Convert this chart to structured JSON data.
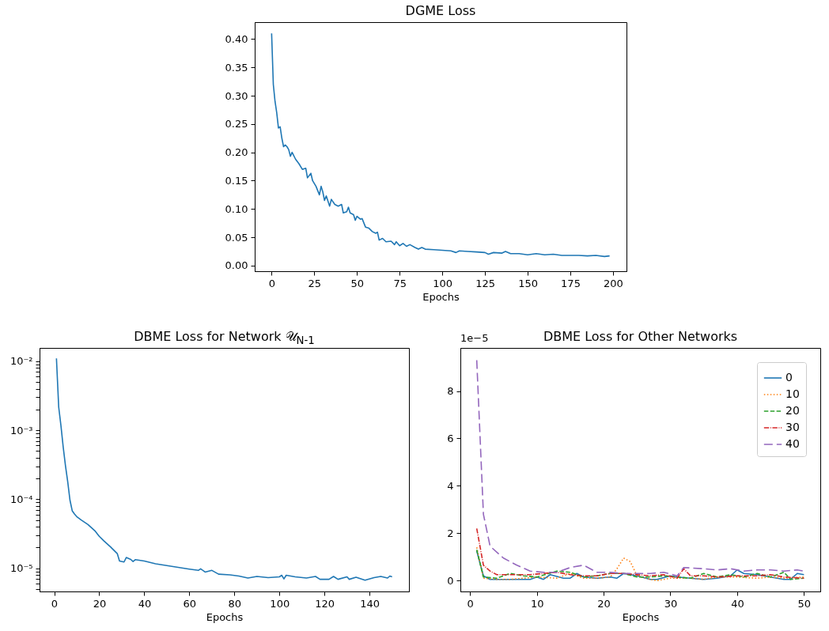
{
  "chart_data": [
    {
      "type": "line",
      "title": "DGME Loss",
      "xlabel": "Epochs",
      "xlim": [
        -9.9,
        207.9
      ],
      "ylim": [
        -0.01,
        0.43
      ],
      "xticks": [
        0,
        25,
        50,
        75,
        100,
        125,
        150,
        175,
        200
      ],
      "yticks": [
        {
          "value": 0,
          "label": "0.00"
        },
        {
          "value": 0.05,
          "label": "0.05"
        },
        {
          "value": 0.1,
          "label": "0.10"
        },
        {
          "value": 0.15,
          "label": "0.15"
        },
        {
          "value": 0.2,
          "label": "0.20"
        },
        {
          "value": 0.25,
          "label": "0.25"
        },
        {
          "value": 0.3,
          "label": "0.30"
        },
        {
          "value": 0.35,
          "label": "0.35"
        },
        {
          "value": 0.4,
          "label": "0.40"
        }
      ],
      "grid": false,
      "series": [
        {
          "color": "#1f77b4",
          "x": [
            0,
            1,
            2,
            3,
            4,
            5,
            6,
            7,
            8,
            9,
            10,
            11,
            12,
            14,
            16,
            18,
            20,
            21,
            23,
            24,
            26,
            28,
            29,
            30,
            31,
            32,
            34,
            35,
            37,
            39,
            41,
            42,
            44,
            45,
            46,
            48,
            49,
            50,
            52,
            53,
            55,
            57,
            59,
            61,
            62,
            63,
            65,
            67,
            70,
            72,
            73,
            75,
            77,
            79,
            81,
            84,
            86,
            88,
            90,
            95,
            100,
            105,
            108,
            110,
            115,
            120,
            125,
            127,
            130,
            135,
            137,
            140,
            145,
            150,
            155,
            160,
            165,
            170,
            175,
            180,
            185,
            190,
            195,
            198
          ],
          "values": [
            0.41,
            0.32,
            0.29,
            0.27,
            0.243,
            0.245,
            0.225,
            0.21,
            0.213,
            0.21,
            0.205,
            0.193,
            0.2,
            0.188,
            0.18,
            0.17,
            0.172,
            0.155,
            0.163,
            0.15,
            0.14,
            0.125,
            0.14,
            0.13,
            0.115,
            0.123,
            0.105,
            0.117,
            0.108,
            0.105,
            0.108,
            0.093,
            0.095,
            0.103,
            0.093,
            0.09,
            0.08,
            0.087,
            0.082,
            0.083,
            0.068,
            0.066,
            0.06,
            0.057,
            0.059,
            0.045,
            0.048,
            0.042,
            0.043,
            0.037,
            0.042,
            0.035,
            0.039,
            0.034,
            0.037,
            0.032,
            0.029,
            0.032,
            0.029,
            0.028,
            0.027,
            0.026,
            0.023,
            0.026,
            0.025,
            0.024,
            0.023,
            0.02,
            0.023,
            0.022,
            0.025,
            0.021,
            0.021,
            0.019,
            0.021,
            0.019,
            0.02,
            0.018,
            0.018,
            0.018,
            0.017,
            0.018,
            0.016,
            0.017
          ]
        }
      ]
    },
    {
      "type": "line",
      "title": "DBME Loss for Network 𝒰$_{N-1}$",
      "xlabel": "Epochs",
      "log": true,
      "xlim": [
        -6.5,
        157.5
      ],
      "ylim": [
        4.6e-06,
        0.0156
      ],
      "xticks": [
        0,
        20,
        40,
        60,
        80,
        100,
        120,
        140
      ],
      "yticks": [
        {
          "value": 5e-06,
          "label": null
        },
        {
          "value": 6e-06,
          "label": null
        },
        {
          "value": 7e-06,
          "label": null
        },
        {
          "value": 8e-06,
          "label": null
        },
        {
          "value": 9e-06,
          "label": null
        },
        {
          "value": 1e-05,
          "label": "10⁻⁵"
        },
        {
          "value": 2e-05,
          "label": null
        },
        {
          "value": 3e-05,
          "label": null
        },
        {
          "value": 4e-05,
          "label": null
        },
        {
          "value": 5e-05,
          "label": null
        },
        {
          "value": 6e-05,
          "label": null
        },
        {
          "value": 7e-05,
          "label": null
        },
        {
          "value": 8e-05,
          "label": null
        },
        {
          "value": 9e-05,
          "label": null
        },
        {
          "value": 0.0001,
          "label": "10⁻⁴"
        },
        {
          "value": 0.0002,
          "label": null
        },
        {
          "value": 0.0003,
          "label": null
        },
        {
          "value": 0.0004,
          "label": null
        },
        {
          "value": 0.0005,
          "label": null
        },
        {
          "value": 0.0006,
          "label": null
        },
        {
          "value": 0.0007,
          "label": null
        },
        {
          "value": 0.0008,
          "label": null
        },
        {
          "value": 0.0009,
          "label": null
        },
        {
          "value": 0.001,
          "label": "10⁻³"
        },
        {
          "value": 0.002,
          "label": null
        },
        {
          "value": 0.003,
          "label": null
        },
        {
          "value": 0.004,
          "label": null
        },
        {
          "value": 0.005,
          "label": null
        },
        {
          "value": 0.006,
          "label": null
        },
        {
          "value": 0.007,
          "label": null
        },
        {
          "value": 0.008,
          "label": null
        },
        {
          "value": 0.009,
          "label": null
        },
        {
          "value": 0.01,
          "label": "10⁻²"
        }
      ],
      "grid": false,
      "series": [
        {
          "color": "#1f77b4",
          "x": [
            1,
            2,
            3,
            4,
            5,
            6,
            7,
            8,
            9,
            10,
            12,
            15,
            18,
            20,
            22,
            25,
            28,
            29,
            31,
            32,
            34,
            35,
            36,
            40,
            45,
            50,
            55,
            60,
            64,
            65,
            67,
            70,
            73,
            78,
            82,
            86,
            90,
            95,
            100,
            101,
            102,
            103,
            107,
            112,
            116,
            118,
            122,
            124,
            126,
            130,
            131,
            134,
            138,
            142,
            145,
            148,
            149,
            150
          ],
          "values": [
            0.011,
            0.00217,
            0.00116,
            0.00057,
            0.000306,
            0.00018,
            9.7e-05,
            6.8e-05,
            6.1e-05,
            5.6e-05,
            5e-05,
            4.3e-05,
            3.5e-05,
            2.9e-05,
            2.5e-05,
            2.04e-05,
            1.63e-05,
            1.27e-05,
            1.23e-05,
            1.43e-05,
            1.34e-05,
            1.25e-05,
            1.33e-05,
            1.27e-05,
            1.16e-05,
            1.09e-05,
            1.03e-05,
            9.7e-06,
            9.3e-06,
            9.8e-06,
            8.8e-06,
            9.3e-06,
            8.2e-06,
            8e-06,
            7.7e-06,
            7.2e-06,
            7.6e-06,
            7.3e-06,
            7.5e-06,
            7.9e-06,
            7e-06,
            7.9e-06,
            7.5e-06,
            7.2e-06,
            7.6e-06,
            6.9e-06,
            6.9e-06,
            7.6e-06,
            6.9e-06,
            7.5e-06,
            6.9e-06,
            7.4e-06,
            6.7e-06,
            7.3e-06,
            7.6e-06,
            7.2e-06,
            7.7e-06,
            7.5e-06
          ]
        }
      ]
    },
    {
      "type": "line",
      "title": "DBME Loss for Other Networks",
      "xlabel": "Epochs",
      "xlim": [
        -1.45,
        52.45
      ],
      "ylim": [
        -0.46,
        9.82
      ],
      "xticks": [
        0,
        10,
        20,
        30,
        40,
        50
      ],
      "yticks": [
        0,
        2,
        4,
        6,
        8
      ],
      "grid": false,
      "legend": "top right",
      "annotations": [
        "1e−5"
      ],
      "series": [
        {
          "name": "0",
          "color": "#1f77b4",
          "line_style": "solid",
          "x": [
            1,
            2,
            3,
            5,
            7,
            9,
            10,
            11,
            12,
            14,
            15,
            16,
            17,
            19,
            21,
            22,
            23,
            25,
            27,
            28,
            30,
            31,
            33,
            35,
            37,
            39,
            40,
            41,
            43,
            45,
            47,
            48,
            49,
            50
          ],
          "values": [
            1.25,
            0.2,
            0.05,
            0.05,
            0.05,
            0.05,
            0.15,
            0.05,
            0.25,
            0.1,
            0.1,
            0.3,
            0.15,
            0.1,
            0.15,
            0.1,
            0.3,
            0.2,
            0.05,
            0.05,
            0.2,
            0.15,
            0.1,
            0.05,
            0.1,
            0.2,
            0.45,
            0.3,
            0.25,
            0.15,
            0.05,
            0.05,
            0.3,
            0.25
          ]
        },
        {
          "name": "10",
          "color": "#ff7f0e",
          "line_style": "dotted",
          "x": [
            1,
            2,
            4,
            6,
            8,
            10,
            13,
            15,
            17,
            19,
            21,
            22,
            23,
            24,
            25,
            27,
            28,
            30,
            33,
            35,
            37,
            40,
            43,
            45,
            47,
            50
          ],
          "values": [
            1.4,
            0.1,
            0.05,
            0.05,
            0.1,
            0.15,
            0.1,
            0.3,
            0.1,
            0.1,
            0.15,
            0.5,
            0.95,
            0.8,
            0.2,
            0.05,
            0.0,
            0.1,
            0.1,
            0.05,
            0.15,
            0.15,
            0.1,
            0.15,
            0.1,
            0.15
          ]
        },
        {
          "name": "20",
          "color": "#2ca02c",
          "line_style": "dashed",
          "x": [
            1,
            2,
            4,
            6,
            8,
            10,
            13,
            15,
            17,
            19,
            21,
            23,
            25,
            27,
            29,
            31,
            33,
            35,
            37,
            39,
            41,
            43,
            45,
            47,
            48,
            50
          ],
          "values": [
            1.3,
            0.15,
            0.1,
            0.3,
            0.2,
            0.15,
            0.4,
            0.35,
            0.15,
            0.2,
            0.3,
            0.3,
            0.15,
            0.15,
            0.2,
            0.15,
            0.1,
            0.3,
            0.15,
            0.25,
            0.15,
            0.3,
            0.15,
            0.35,
            0.05,
            0.1
          ]
        },
        {
          "name": "30",
          "color": "#d62728",
          "line_style": "dashdot",
          "x": [
            1,
            2,
            3,
            4,
            6,
            9,
            13,
            15,
            17,
            19,
            21,
            23,
            25,
            27,
            29,
            31,
            32,
            33,
            35,
            37,
            40,
            43,
            45,
            47,
            50
          ],
          "values": [
            2.2,
            0.65,
            0.4,
            0.25,
            0.25,
            0.25,
            0.35,
            0.25,
            0.2,
            0.2,
            0.3,
            0.3,
            0.25,
            0.2,
            0.25,
            0.1,
            0.5,
            0.2,
            0.2,
            0.15,
            0.2,
            0.2,
            0.25,
            0.15,
            0.1
          ]
        },
        {
          "name": "40",
          "color": "#9467bd",
          "line_style": "longdash",
          "x": [
            1,
            2,
            3,
            5,
            7,
            9,
            11,
            13,
            15,
            17,
            19,
            21,
            23,
            25,
            27,
            29,
            31,
            32,
            35,
            37,
            39,
            41,
            43,
            45,
            47,
            49,
            50
          ],
          "values": [
            9.3,
            2.8,
            1.45,
            0.95,
            0.65,
            0.4,
            0.35,
            0.35,
            0.55,
            0.65,
            0.35,
            0.35,
            0.3,
            0.3,
            0.3,
            0.35,
            0.2,
            0.55,
            0.5,
            0.45,
            0.5,
            0.4,
            0.45,
            0.45,
            0.4,
            0.45,
            0.4
          ]
        }
      ]
    }
  ]
}
